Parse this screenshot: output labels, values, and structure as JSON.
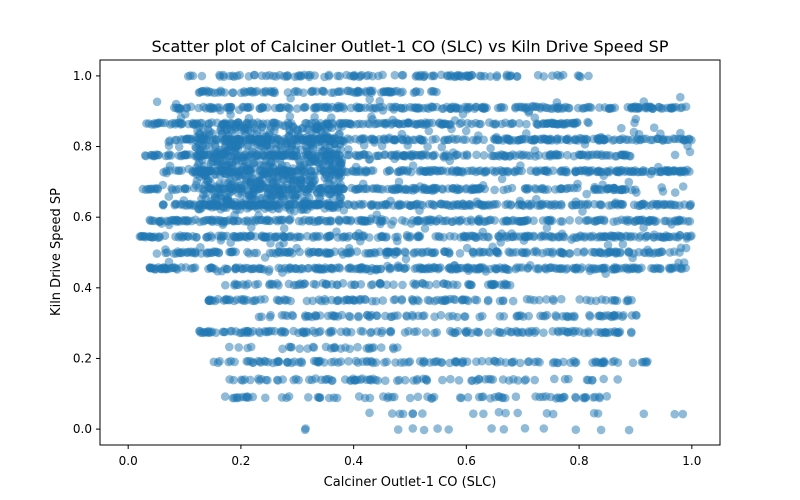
{
  "chart_data": {
    "type": "scatter",
    "title": "Scatter plot of Calciner Outlet-1 CO (SLC) vs Kiln Drive Speed SP",
    "xlabel": "Calciner Outlet-1 CO (SLC)",
    "ylabel": "Kiln Drive Speed SP",
    "xlim": [
      -0.05,
      1.05
    ],
    "ylim": [
      -0.045,
      1.045
    ],
    "xticks": [
      "0.0",
      "0.2",
      "0.4",
      "0.6",
      "0.8",
      "1.0"
    ],
    "yticks": [
      "0.0",
      "0.2",
      "0.4",
      "0.6",
      "0.8",
      "1.0"
    ],
    "grid": false,
    "legend": "none",
    "marker_color": "#1f77b4",
    "marker_alpha": 0.5,
    "bands": [
      {
        "y": 1.0,
        "x_range": [
          0.1,
          0.82
        ],
        "density": 0.6
      },
      {
        "y": 0.955,
        "x_range": [
          0.12,
          0.55
        ],
        "density": 0.8
      },
      {
        "y": 0.91,
        "x_range": [
          0.08,
          1.0
        ],
        "density": 0.9
      },
      {
        "y": 0.865,
        "x_range": [
          0.03,
          0.82
        ],
        "density": 0.9
      },
      {
        "y": 0.82,
        "x_range": [
          0.07,
          1.0
        ],
        "density": 1.0
      },
      {
        "y": 0.775,
        "x_range": [
          0.03,
          0.9
        ],
        "density": 0.9
      },
      {
        "y": 0.73,
        "x_range": [
          0.06,
          1.0
        ],
        "density": 1.0
      },
      {
        "y": 0.68,
        "x_range": [
          0.02,
          0.9
        ],
        "density": 0.9
      },
      {
        "y": 0.635,
        "x_range": [
          0.06,
          1.0
        ],
        "density": 1.0
      },
      {
        "y": 0.59,
        "x_range": [
          0.03,
          1.0
        ],
        "density": 0.9
      },
      {
        "y": 0.545,
        "x_range": [
          0.02,
          1.0
        ],
        "density": 0.9
      },
      {
        "y": 0.5,
        "x_range": [
          0.06,
          0.98
        ],
        "density": 0.8
      },
      {
        "y": 0.455,
        "x_range": [
          0.03,
          1.0
        ],
        "density": 1.0
      },
      {
        "y": 0.41,
        "x_range": [
          0.17,
          0.68
        ],
        "density": 0.6
      },
      {
        "y": 0.365,
        "x_range": [
          0.14,
          0.9
        ],
        "density": 0.6
      },
      {
        "y": 0.32,
        "x_range": [
          0.17,
          0.92
        ],
        "density": 0.5
      },
      {
        "y": 0.275,
        "x_range": [
          0.12,
          0.9
        ],
        "density": 0.7
      },
      {
        "y": 0.23,
        "x_range": [
          0.17,
          0.5
        ],
        "density": 0.35
      },
      {
        "y": 0.19,
        "x_range": [
          0.14,
          0.93
        ],
        "density": 0.6
      },
      {
        "y": 0.14,
        "x_range": [
          0.18,
          0.88
        ],
        "density": 0.45
      },
      {
        "y": 0.09,
        "x_range": [
          0.17,
          0.88
        ],
        "density": 0.4
      },
      {
        "y": 0.045,
        "x_range": [
          0.4,
          1.0
        ],
        "density": 0.12
      },
      {
        "y": 0.0,
        "x_range": [
          0.3,
          0.98
        ],
        "density": 0.08
      }
    ],
    "dense_cluster": {
      "x_range": [
        0.12,
        0.38
      ],
      "y_range": [
        0.62,
        0.86
      ]
    }
  }
}
